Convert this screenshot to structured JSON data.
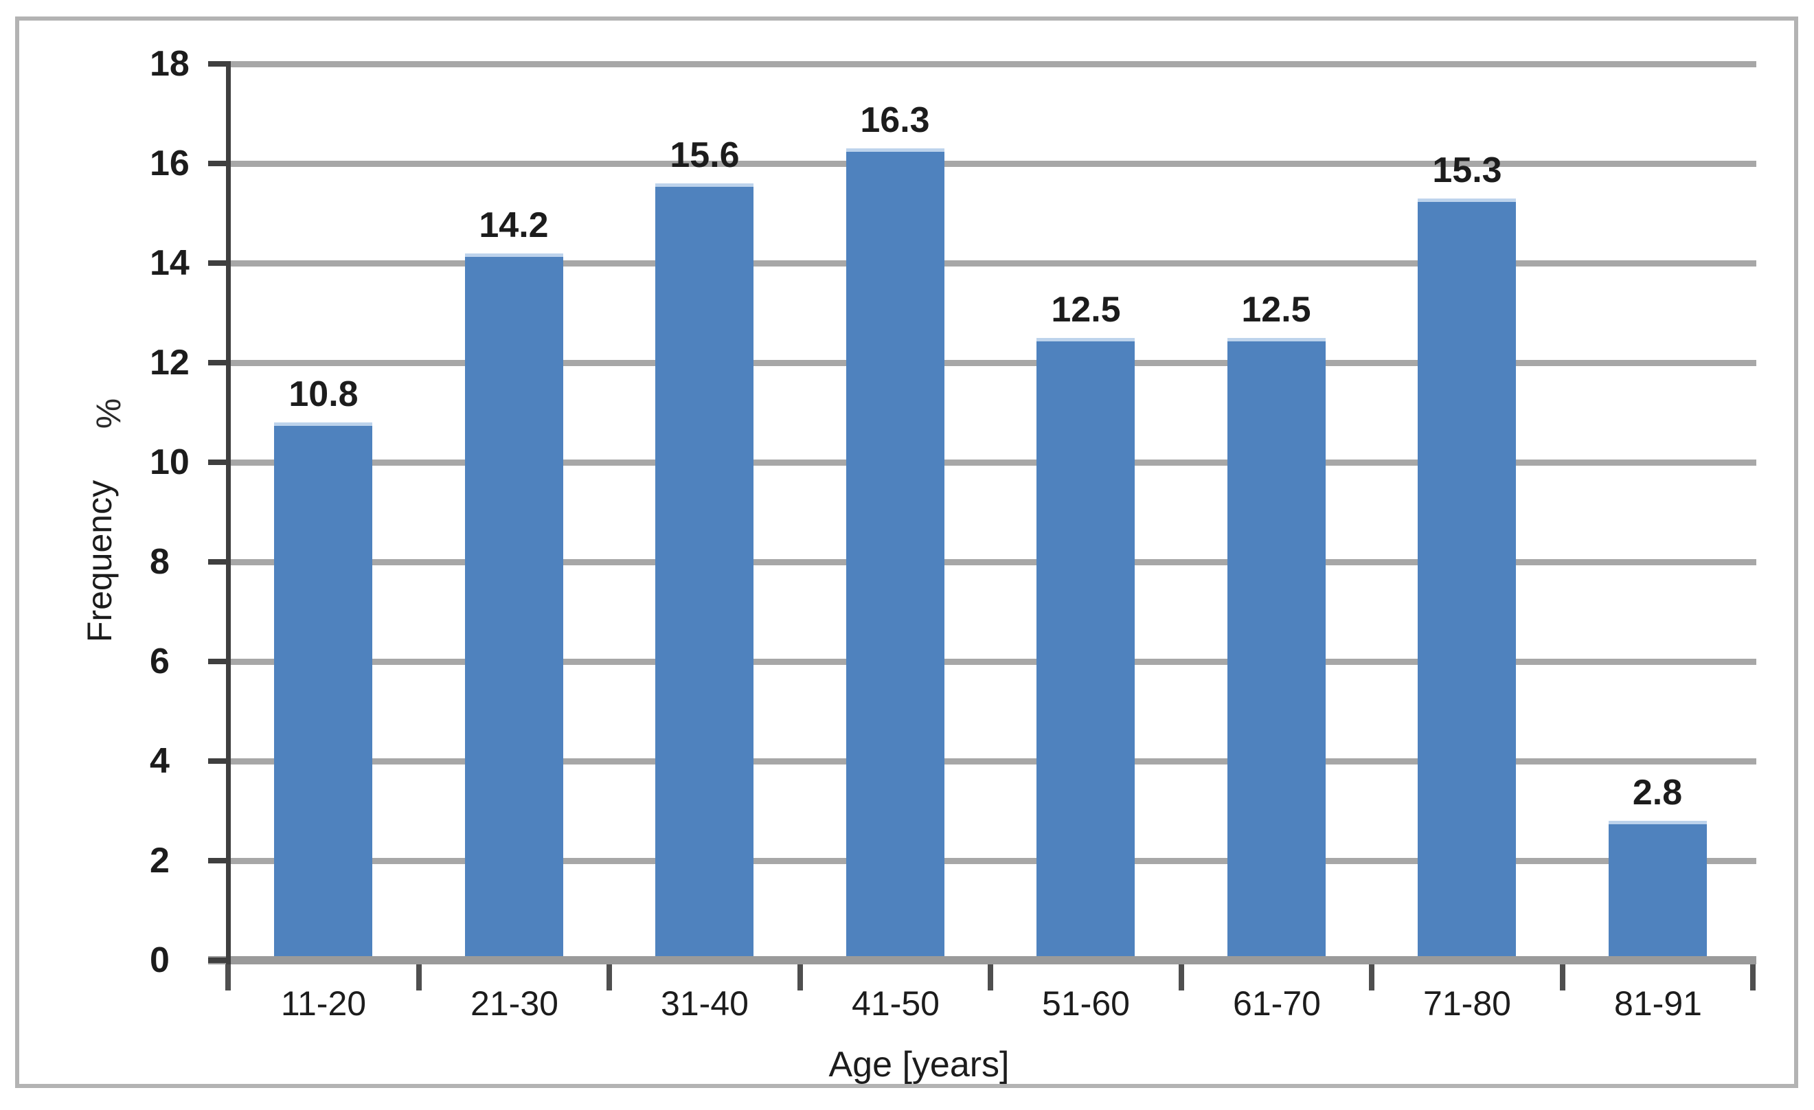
{
  "chart_data": {
    "type": "bar",
    "title": "",
    "categories": [
      "11-20",
      "21-30",
      "31-40",
      "41-50",
      "51-60",
      "61-70",
      "71-80",
      "81-91"
    ],
    "values": [
      10.8,
      14.2,
      15.6,
      16.3,
      12.5,
      12.5,
      15.3,
      2.8
    ],
    "data_labels": [
      "10.8",
      "14.2",
      "15.6",
      "16.3",
      "12.5",
      "12.5",
      "15.3",
      "2.8"
    ],
    "xlabel": "Age [years]",
    "ylabel": "Frequency",
    "ylabel_unit": "%",
    "ylim": [
      0,
      18
    ],
    "ytick_step": 2,
    "ytick_labels": [
      "0",
      "2",
      "4",
      "6",
      "8",
      "10",
      "12",
      "14",
      "16",
      "18"
    ],
    "grid": true,
    "legend": false,
    "colors": {
      "bar": "#4f82be",
      "bar_top_edge": "#bdd3ec",
      "gridline": "#a7a7a7",
      "baseline": "#9a9a9a",
      "axis_line": "#3f3f3f",
      "text": "#1c1c1c",
      "frame_border": "#b3b3b3",
      "background": "#ffffff"
    }
  }
}
